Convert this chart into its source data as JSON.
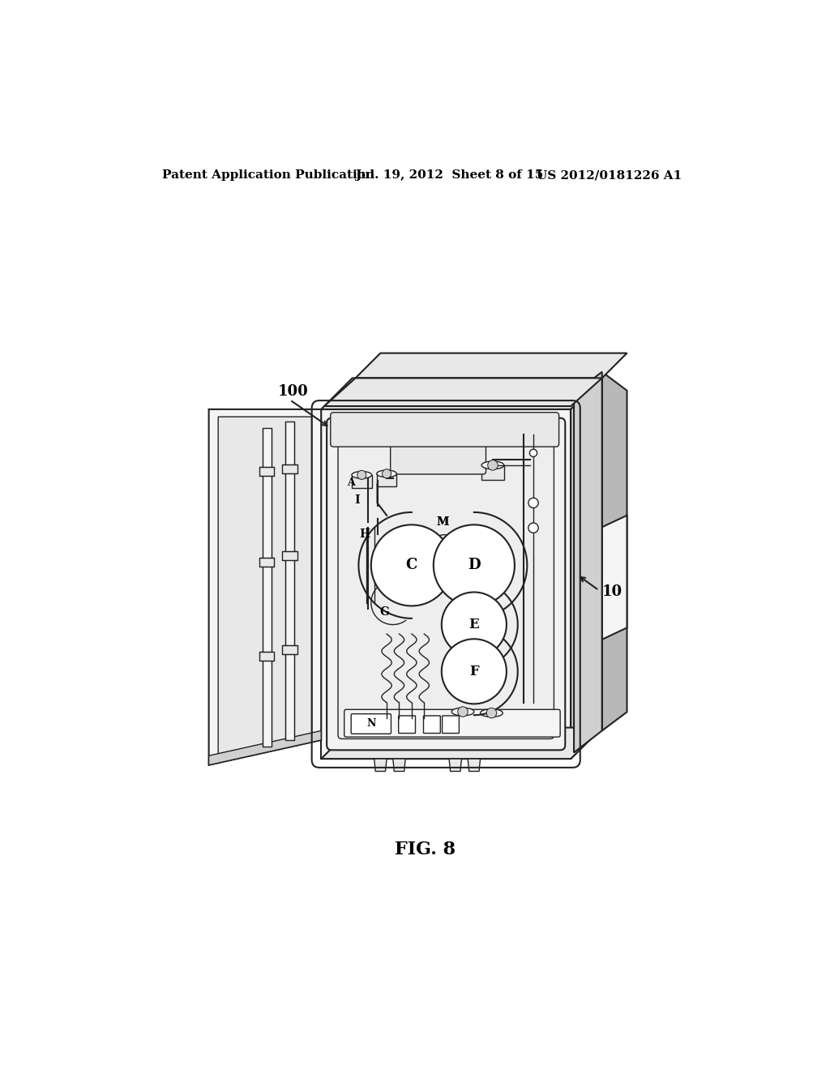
{
  "bg_color": "#ffffff",
  "header_left": "Patent Application Publication",
  "header_mid": "Jul. 19, 2012  Sheet 8 of 15",
  "header_right": "US 2012/0181226 A1",
  "fig_label": "FIG. 8",
  "label_100": "100",
  "label_10": "10",
  "header_fontsize": 11,
  "fig_label_fontsize": 16,
  "line_color": "#222222",
  "fill_light": "#f5f5f5",
  "fill_mid": "#e8e8e8",
  "fill_dark": "#d0d0d0",
  "fill_darker": "#b8b8b8"
}
